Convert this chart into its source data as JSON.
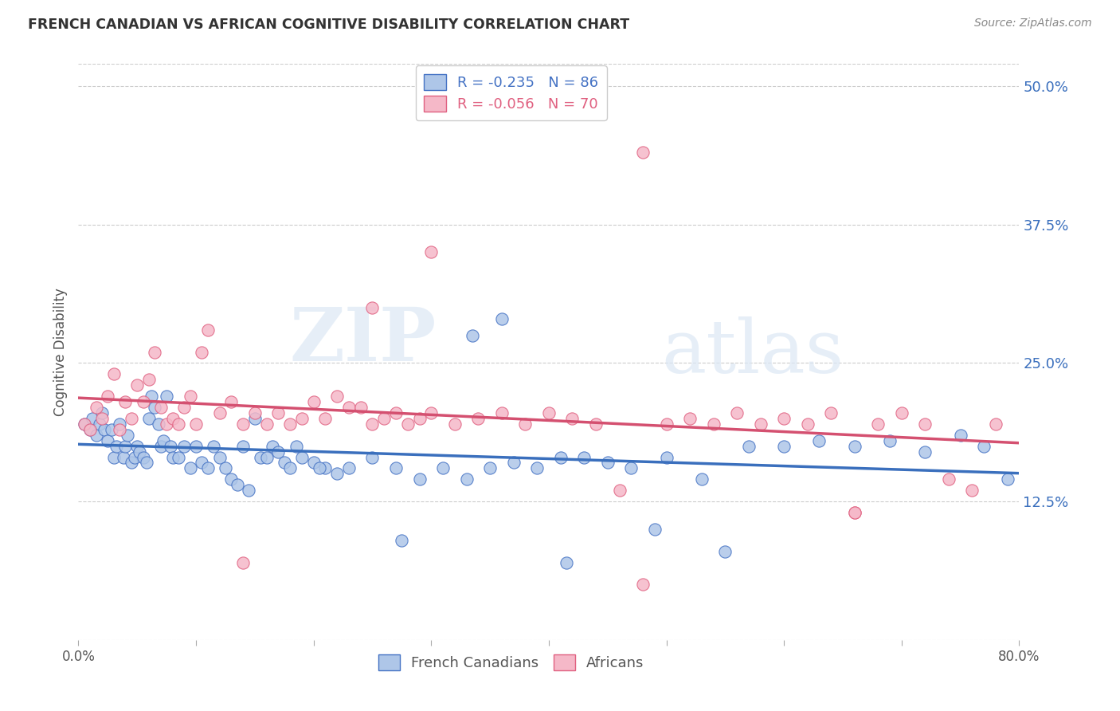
{
  "title": "FRENCH CANADIAN VS AFRICAN COGNITIVE DISABILITY CORRELATION CHART",
  "source": "Source: ZipAtlas.com",
  "ylabel": "Cognitive Disability",
  "ytick_labels": [
    "12.5%",
    "25.0%",
    "37.5%",
    "50.0%"
  ],
  "ytick_values": [
    12.5,
    25.0,
    37.5,
    50.0
  ],
  "xlim": [
    0.0,
    80.0
  ],
  "ylim": [
    0.0,
    52.0
  ],
  "blue_fill_color": "#aec6e8",
  "pink_fill_color": "#f5b8c8",
  "blue_edge_color": "#4472c4",
  "pink_edge_color": "#e06080",
  "blue_line_color": "#3a6fbd",
  "pink_line_color": "#d45070",
  "legend_blue_label": "R = -0.235   N = 86",
  "legend_pink_label": "R = -0.056   N = 70",
  "watermark_zip": "ZIP",
  "watermark_atlas": "atlas",
  "xtick_labels_left": "0.0%",
  "xtick_labels_right": "80.0%",
  "blue_scatter_x": [
    0.5,
    1.0,
    1.2,
    1.5,
    1.8,
    2.0,
    2.2,
    2.5,
    2.8,
    3.0,
    3.2,
    3.5,
    3.8,
    4.0,
    4.2,
    4.5,
    4.8,
    5.0,
    5.2,
    5.5,
    5.8,
    6.0,
    6.2,
    6.5,
    6.8,
    7.0,
    7.2,
    7.5,
    7.8,
    8.0,
    8.5,
    9.0,
    9.5,
    10.0,
    10.5,
    11.0,
    11.5,
    12.0,
    12.5,
    13.0,
    13.5,
    14.0,
    14.5,
    15.0,
    15.5,
    16.0,
    16.5,
    17.0,
    17.5,
    18.0,
    18.5,
    19.0,
    20.0,
    21.0,
    22.0,
    23.0,
    25.0,
    27.0,
    29.0,
    31.0,
    33.0,
    35.0,
    37.0,
    39.0,
    41.0,
    43.0,
    45.0,
    47.0,
    50.0,
    53.0,
    55.0,
    57.0,
    60.0,
    63.0,
    66.0,
    69.0,
    72.0,
    75.0,
    77.0,
    79.0,
    36.0,
    41.5,
    49.0,
    33.5,
    27.5,
    20.5
  ],
  "blue_scatter_y": [
    19.5,
    19.0,
    20.0,
    18.5,
    19.5,
    20.5,
    19.0,
    18.0,
    19.0,
    16.5,
    17.5,
    19.5,
    16.5,
    17.5,
    18.5,
    16.0,
    16.5,
    17.5,
    17.0,
    16.5,
    16.0,
    20.0,
    22.0,
    21.0,
    19.5,
    17.5,
    18.0,
    22.0,
    17.5,
    16.5,
    16.5,
    17.5,
    15.5,
    17.5,
    16.0,
    15.5,
    17.5,
    16.5,
    15.5,
    14.5,
    14.0,
    17.5,
    13.5,
    20.0,
    16.5,
    16.5,
    17.5,
    17.0,
    16.0,
    15.5,
    17.5,
    16.5,
    16.0,
    15.5,
    15.0,
    15.5,
    16.5,
    15.5,
    14.5,
    15.5,
    14.5,
    15.5,
    16.0,
    15.5,
    16.5,
    16.5,
    16.0,
    15.5,
    16.5,
    14.5,
    8.0,
    17.5,
    17.5,
    18.0,
    17.5,
    18.0,
    17.0,
    18.5,
    17.5,
    14.5,
    29.0,
    7.0,
    10.0,
    27.5,
    9.0,
    15.5
  ],
  "pink_scatter_x": [
    0.5,
    1.0,
    1.5,
    2.0,
    2.5,
    3.0,
    3.5,
    4.0,
    4.5,
    5.0,
    5.5,
    6.0,
    6.5,
    7.0,
    7.5,
    8.0,
    8.5,
    9.0,
    9.5,
    10.0,
    10.5,
    11.0,
    12.0,
    13.0,
    14.0,
    15.0,
    16.0,
    17.0,
    18.0,
    19.0,
    20.0,
    21.0,
    22.0,
    23.0,
    24.0,
    25.0,
    26.0,
    27.0,
    28.0,
    29.0,
    30.0,
    32.0,
    34.0,
    36.0,
    38.0,
    40.0,
    42.0,
    44.0,
    46.0,
    48.0,
    50.0,
    52.0,
    54.0,
    56.0,
    58.0,
    60.0,
    62.0,
    64.0,
    66.0,
    68.0,
    70.0,
    72.0,
    74.0,
    76.0,
    78.0,
    25.0,
    14.0,
    30.0,
    48.0,
    66.0
  ],
  "pink_scatter_y": [
    19.5,
    19.0,
    21.0,
    20.0,
    22.0,
    24.0,
    19.0,
    21.5,
    20.0,
    23.0,
    21.5,
    23.5,
    26.0,
    21.0,
    19.5,
    20.0,
    19.5,
    21.0,
    22.0,
    19.5,
    26.0,
    28.0,
    20.5,
    21.5,
    19.5,
    20.5,
    19.5,
    20.5,
    19.5,
    20.0,
    21.5,
    20.0,
    22.0,
    21.0,
    21.0,
    19.5,
    20.0,
    20.5,
    19.5,
    20.0,
    20.5,
    19.5,
    20.0,
    20.5,
    19.5,
    20.5,
    20.0,
    19.5,
    13.5,
    5.0,
    19.5,
    20.0,
    19.5,
    20.5,
    19.5,
    20.0,
    19.5,
    20.5,
    11.5,
    19.5,
    20.5,
    19.5,
    14.5,
    13.5,
    19.5,
    30.0,
    7.0,
    35.0,
    44.0,
    11.5
  ]
}
